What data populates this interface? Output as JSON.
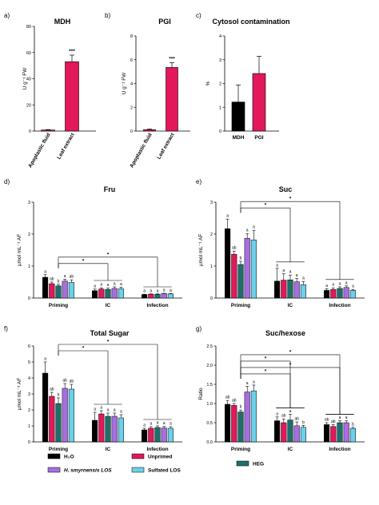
{
  "chart_data": [
    {
      "panel": "a)",
      "type": "bar",
      "title": "MDH",
      "ylabel": "U g⁻¹ FW",
      "ylim": [
        0,
        80
      ],
      "yticks": [
        0,
        20,
        40,
        60,
        80
      ],
      "categories": [
        "Apoplastic fluid",
        "Leaf extract"
      ],
      "values": [
        0.8,
        53
      ],
      "errors": [
        0.3,
        5
      ],
      "colors": [
        "#e2185a",
        "#e2185a"
      ],
      "annotations": [
        "",
        "***"
      ]
    },
    {
      "panel": "b)",
      "type": "bar",
      "title": "PGI",
      "ylabel": "U g⁻¹ FW",
      "ylim": [
        0,
        8
      ],
      "yticks": [
        0,
        2,
        4,
        6,
        8
      ],
      "categories": [
        "Apoplastic fluid",
        "Leaf extract"
      ],
      "values": [
        0.12,
        5.35
      ],
      "errors": [
        0.05,
        0.4
      ],
      "colors": [
        "#e2185a",
        "#e2185a"
      ],
      "annotations": [
        "",
        "***"
      ]
    },
    {
      "panel": "c)",
      "type": "bar",
      "title": "Cytosol contamination",
      "ylabel": "%",
      "ylim": [
        0,
        4
      ],
      "yticks": [
        0,
        1,
        2,
        3,
        4
      ],
      "categories": [
        "MDH",
        "PGI"
      ],
      "values": [
        1.22,
        2.42
      ],
      "errors": [
        0.72,
        0.72
      ],
      "colors": [
        "#000000",
        "#e2185a"
      ],
      "annotations": [
        "",
        ""
      ]
    },
    {
      "panel": "d)",
      "type": "bar",
      "title": "Fru",
      "ylabel": "µmol mL⁻¹ AF",
      "ylim": [
        0,
        3
      ],
      "yticks": [
        0,
        1,
        2,
        3
      ],
      "categories": [
        "Priming",
        "IC",
        "Infection"
      ],
      "series": [
        {
          "name": "H₂O",
          "values": [
            0.65,
            0.23,
            0.11
          ],
          "errors": [
            0.08,
            0.05,
            0.01
          ]
        },
        {
          "name": "Unprimed",
          "values": [
            0.45,
            0.28,
            0.12
          ],
          "errors": [
            0.05,
            0.04,
            0.01
          ]
        },
        {
          "name": "HEG",
          "values": [
            0.38,
            0.27,
            0.12
          ],
          "errors": [
            0.05,
            0.04,
            0.01
          ]
        },
        {
          "name": "H. smyrnensis LOS",
          "values": [
            0.53,
            0.3,
            0.14
          ],
          "errors": [
            0.06,
            0.05,
            0.01
          ]
        },
        {
          "name": "Sulfated LOS",
          "values": [
            0.49,
            0.29,
            0.13
          ],
          "errors": [
            0.08,
            0.05,
            0.01
          ]
        }
      ],
      "letters": [
        [
          "a",
          "ab",
          "b",
          "a",
          "ab"
        ],
        [
          "a",
          "a",
          "a",
          "a",
          "a"
        ],
        [
          "a",
          "a",
          "a",
          "a",
          "a"
        ]
      ],
      "brackets": [
        {
          "from": 0,
          "to": 1,
          "label": "*"
        },
        {
          "from": 0,
          "to": 2,
          "label": "*"
        }
      ]
    },
    {
      "panel": "e)",
      "type": "bar",
      "title": "Suc",
      "ylabel": "µmol mL⁻¹ AF",
      "ylim": [
        0,
        3
      ],
      "yticks": [
        0,
        1,
        2,
        3
      ],
      "categories": [
        "Priming",
        "IC",
        "Infection"
      ],
      "series": [
        {
          "name": "H₂O",
          "values": [
            2.17,
            0.53,
            0.24
          ],
          "errors": [
            0.3,
            0.4,
            0.05
          ]
        },
        {
          "name": "Unprimed",
          "values": [
            1.37,
            0.56,
            0.27
          ],
          "errors": [
            0.1,
            0.2,
            0.05
          ]
        },
        {
          "name": "HEG",
          "values": [
            1.05,
            0.57,
            0.3
          ],
          "errors": [
            0.1,
            0.15,
            0.05
          ]
        },
        {
          "name": "H. smyrnensis LOS",
          "values": [
            1.87,
            0.51,
            0.33
          ],
          "errors": [
            0.15,
            0.1,
            0.05
          ]
        },
        {
          "name": "Sulfated LOS",
          "values": [
            1.82,
            0.42,
            0.24
          ],
          "errors": [
            0.3,
            0.1,
            0.03
          ]
        }
      ],
      "letters": [
        [
          "a",
          "ab",
          "b",
          "a",
          "a"
        ],
        [
          "a",
          "a",
          "a",
          "a",
          "a"
        ],
        [
          "a",
          "a",
          "a",
          "a",
          "a"
        ]
      ],
      "brackets": [
        {
          "from": 0,
          "to": 1,
          "label": "*"
        },
        {
          "from": 0,
          "to": 2,
          "label": "*"
        }
      ]
    },
    {
      "panel": "f)",
      "type": "bar",
      "title": "Total Sugar",
      "ylabel": "µmol mL⁻¹ AF",
      "ylim": [
        0,
        6
      ],
      "yticks": [
        0,
        1,
        2,
        3,
        4,
        5,
        6
      ],
      "categories": [
        "Priming",
        "IC",
        "Infection"
      ],
      "series": [
        {
          "name": "H₂O",
          "values": [
            4.3,
            1.35,
            0.75
          ],
          "errors": [
            0.7,
            0.5,
            0.1
          ]
        },
        {
          "name": "Unprimed",
          "values": [
            2.85,
            1.75,
            0.85
          ],
          "errors": [
            0.25,
            0.2,
            0.1
          ]
        },
        {
          "name": "HEG",
          "values": [
            2.4,
            1.6,
            0.9
          ],
          "errors": [
            0.35,
            0.2,
            0.1
          ]
        },
        {
          "name": "H. smyrnensis LOS",
          "values": [
            3.35,
            1.6,
            0.87
          ],
          "errors": [
            0.3,
            0.2,
            0.1
          ]
        },
        {
          "name": "Sulfated LOS",
          "values": [
            3.3,
            1.5,
            0.85
          ],
          "errors": [
            0.3,
            0.2,
            0.1
          ]
        }
      ],
      "letters": [
        [
          "a",
          "ab",
          "b",
          "ab",
          "ab"
        ],
        [
          "a",
          "a",
          "a",
          "a",
          "a"
        ],
        [
          "a",
          "a",
          "a",
          "a",
          "a"
        ]
      ],
      "brackets": [
        {
          "from": 0,
          "to": 1,
          "label": "*"
        },
        {
          "from": 0,
          "to": 2,
          "label": "*"
        }
      ]
    },
    {
      "panel": "g)",
      "type": "bar",
      "title": "Suc/hexose",
      "ylabel": "Ratio",
      "ylim": [
        0,
        2.5
      ],
      "yticks": [
        0,
        0.5,
        1.0,
        1.5,
        2.0,
        2.5
      ],
      "categories": [
        "Priming",
        "IC",
        "Infection"
      ],
      "series": [
        {
          "name": "H₂O",
          "values": [
            0.98,
            0.55,
            0.45
          ],
          "errors": [
            0.1,
            0.1,
            0.05
          ]
        },
        {
          "name": "Unprimed",
          "values": [
            0.95,
            0.5,
            0.4
          ],
          "errors": [
            0.05,
            0.1,
            0.05
          ]
        },
        {
          "name": "HEG",
          "values": [
            0.78,
            0.57,
            0.5
          ],
          "errors": [
            0.05,
            0.15,
            0.05
          ]
        },
        {
          "name": "H. smyrnensis LOS",
          "values": [
            1.3,
            0.42,
            0.5
          ],
          "errors": [
            0.15,
            0.1,
            0.05
          ]
        },
        {
          "name": "Sulfated LOS",
          "values": [
            1.33,
            0.38,
            0.35
          ],
          "errors": [
            0.15,
            0.05,
            0.03
          ]
        }
      ],
      "letters": [
        [
          "ab",
          "ab",
          "b",
          "a",
          "a"
        ],
        [
          "a",
          "ab",
          "a",
          "ab",
          "b"
        ],
        [
          "ab",
          "ab",
          "a",
          "a",
          "b"
        ]
      ],
      "brackets": [
        {
          "from": 0,
          "to": 1,
          "label": "*"
        },
        {
          "from": 0,
          "to": 2,
          "label": "*"
        },
        {
          "from": 0,
          "to": 1,
          "label": "*"
        },
        {
          "from": 0,
          "to": 2,
          "label": "*"
        }
      ]
    }
  ],
  "legend": {
    "entries": [
      {
        "label": "H₂O",
        "color": "#000000"
      },
      {
        "label": "Unprimed",
        "color": "#e2185a"
      },
      {
        "label": "HEG",
        "color": "#1f6e6b"
      },
      {
        "label": "H. smyrnensis LOS",
        "color": "#a66fe0"
      },
      {
        "label": "Sulfated LOS",
        "color": "#6dd0ea"
      }
    ]
  },
  "colors": {
    "series": [
      "#000000",
      "#e2185a",
      "#1f6e6b",
      "#a66fe0",
      "#6dd0ea"
    ]
  }
}
